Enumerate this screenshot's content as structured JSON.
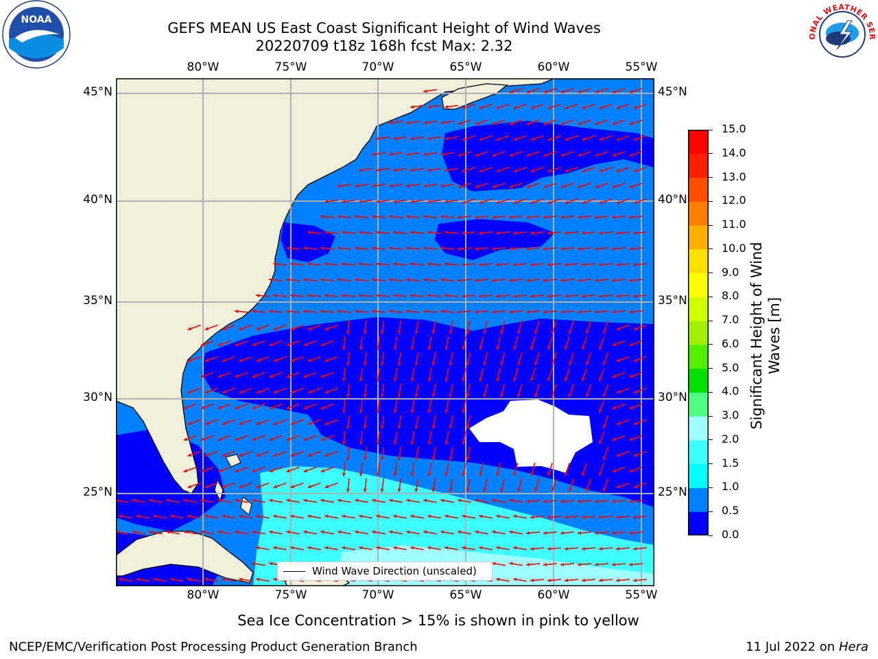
{
  "title": {
    "line1": "GEFS MEAN US East Coast Significant Height of Wind Waves",
    "line2": "20220709 t18z 168h fcst   Max: 2.32"
  },
  "logos": {
    "left": {
      "name": "noaa-logo",
      "text": "NOAA"
    },
    "right": {
      "name": "nws-logo",
      "text": "NATIONAL WEATHER SERVICE"
    }
  },
  "map": {
    "lon_labels": [
      "80°W",
      "75°W",
      "70°W",
      "65°W",
      "60°W",
      "55°W"
    ],
    "lat_labels": [
      "45°N",
      "40°N",
      "35°N",
      "30°N",
      "25°N"
    ],
    "legend_label": "Wind Wave Direction (unscaled)",
    "land_color": "#efefdc",
    "wave_arrow_color": "#ff0000"
  },
  "colorbar": {
    "title": "Significant Height of Wind Waves [m]",
    "labels": [
      "0.0",
      "0.5",
      "1.0",
      "1.5",
      "2.0",
      "3.0",
      "4.0",
      "5.0",
      "6.0",
      "7.0",
      "8.0",
      "9.0",
      "10.0",
      "11.0",
      "12.0",
      "13.0",
      "14.0",
      "15.0"
    ],
    "colors": [
      "#0000ff",
      "#0080ff",
      "#00ffff",
      "#40ffff",
      "#a0ffff",
      "#50ff80",
      "#00e000",
      "#50f000",
      "#a0f000",
      "#d0ff00",
      "#ffff00",
      "#ffe000",
      "#ffb000",
      "#ff8000",
      "#ff5000",
      "#ff2000",
      "#ff0000"
    ]
  },
  "footer": {
    "subtitle": "Sea Ice Concentration > 15% is shown in pink to yellow",
    "credit": "NCEP/EMC/Verification Post Processing Product Generation Branch",
    "date": "11 Jul 2022 on",
    "machine": "Hera"
  }
}
